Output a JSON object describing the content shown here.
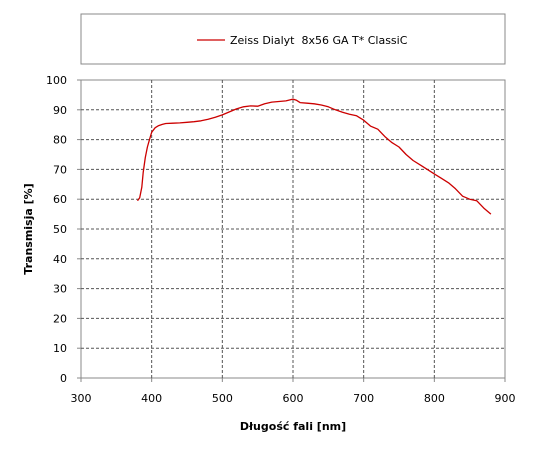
{
  "chart_data": {
    "type": "line",
    "title": "",
    "xlabel": "Długość fali [nm]",
    "ylabel": "Transmisja [%]",
    "xlim": [
      300,
      900
    ],
    "ylim": [
      0,
      100
    ],
    "x_ticks": [
      "300",
      "400",
      "500",
      "600",
      "700",
      "800",
      "900"
    ],
    "y_ticks": [
      "0",
      "10",
      "20",
      "30",
      "40",
      "50",
      "60",
      "70",
      "80",
      "90",
      "100"
    ],
    "grid": true,
    "legend_position": "top",
    "line_color": "#cc0000",
    "series": [
      {
        "name": "Zeiss Dialyt  8x56 GA T* ClassiC",
        "x": [
          380,
          383,
          386,
          388,
          391,
          394,
          397,
          400,
          405,
          410,
          415,
          420,
          430,
          440,
          450,
          460,
          470,
          480,
          490,
          500,
          510,
          520,
          530,
          540,
          550,
          560,
          570,
          580,
          590,
          600,
          605,
          610,
          620,
          630,
          640,
          650,
          660,
          670,
          680,
          690,
          700,
          710,
          720,
          730,
          740,
          750,
          760,
          770,
          780,
          790,
          800,
          810,
          820,
          830,
          840,
          850,
          860,
          870,
          880
        ],
        "y": [
          59.5,
          60.5,
          64,
          69,
          74,
          77.5,
          80,
          82.5,
          84,
          84.7,
          85.1,
          85.4,
          85.5,
          85.6,
          85.8,
          86,
          86.3,
          86.8,
          87.5,
          88.3,
          89.3,
          90.3,
          91,
          91.3,
          91.2,
          92,
          92.6,
          92.8,
          93,
          93.6,
          93.2,
          92.4,
          92.2,
          92,
          91.6,
          91,
          90,
          89.2,
          88.5,
          88,
          86.5,
          84.5,
          83.5,
          81,
          79,
          77.5,
          75,
          73,
          71.5,
          70,
          68.5,
          67,
          65.5,
          63.5,
          61,
          60,
          59.5,
          57,
          55
        ]
      }
    ]
  }
}
